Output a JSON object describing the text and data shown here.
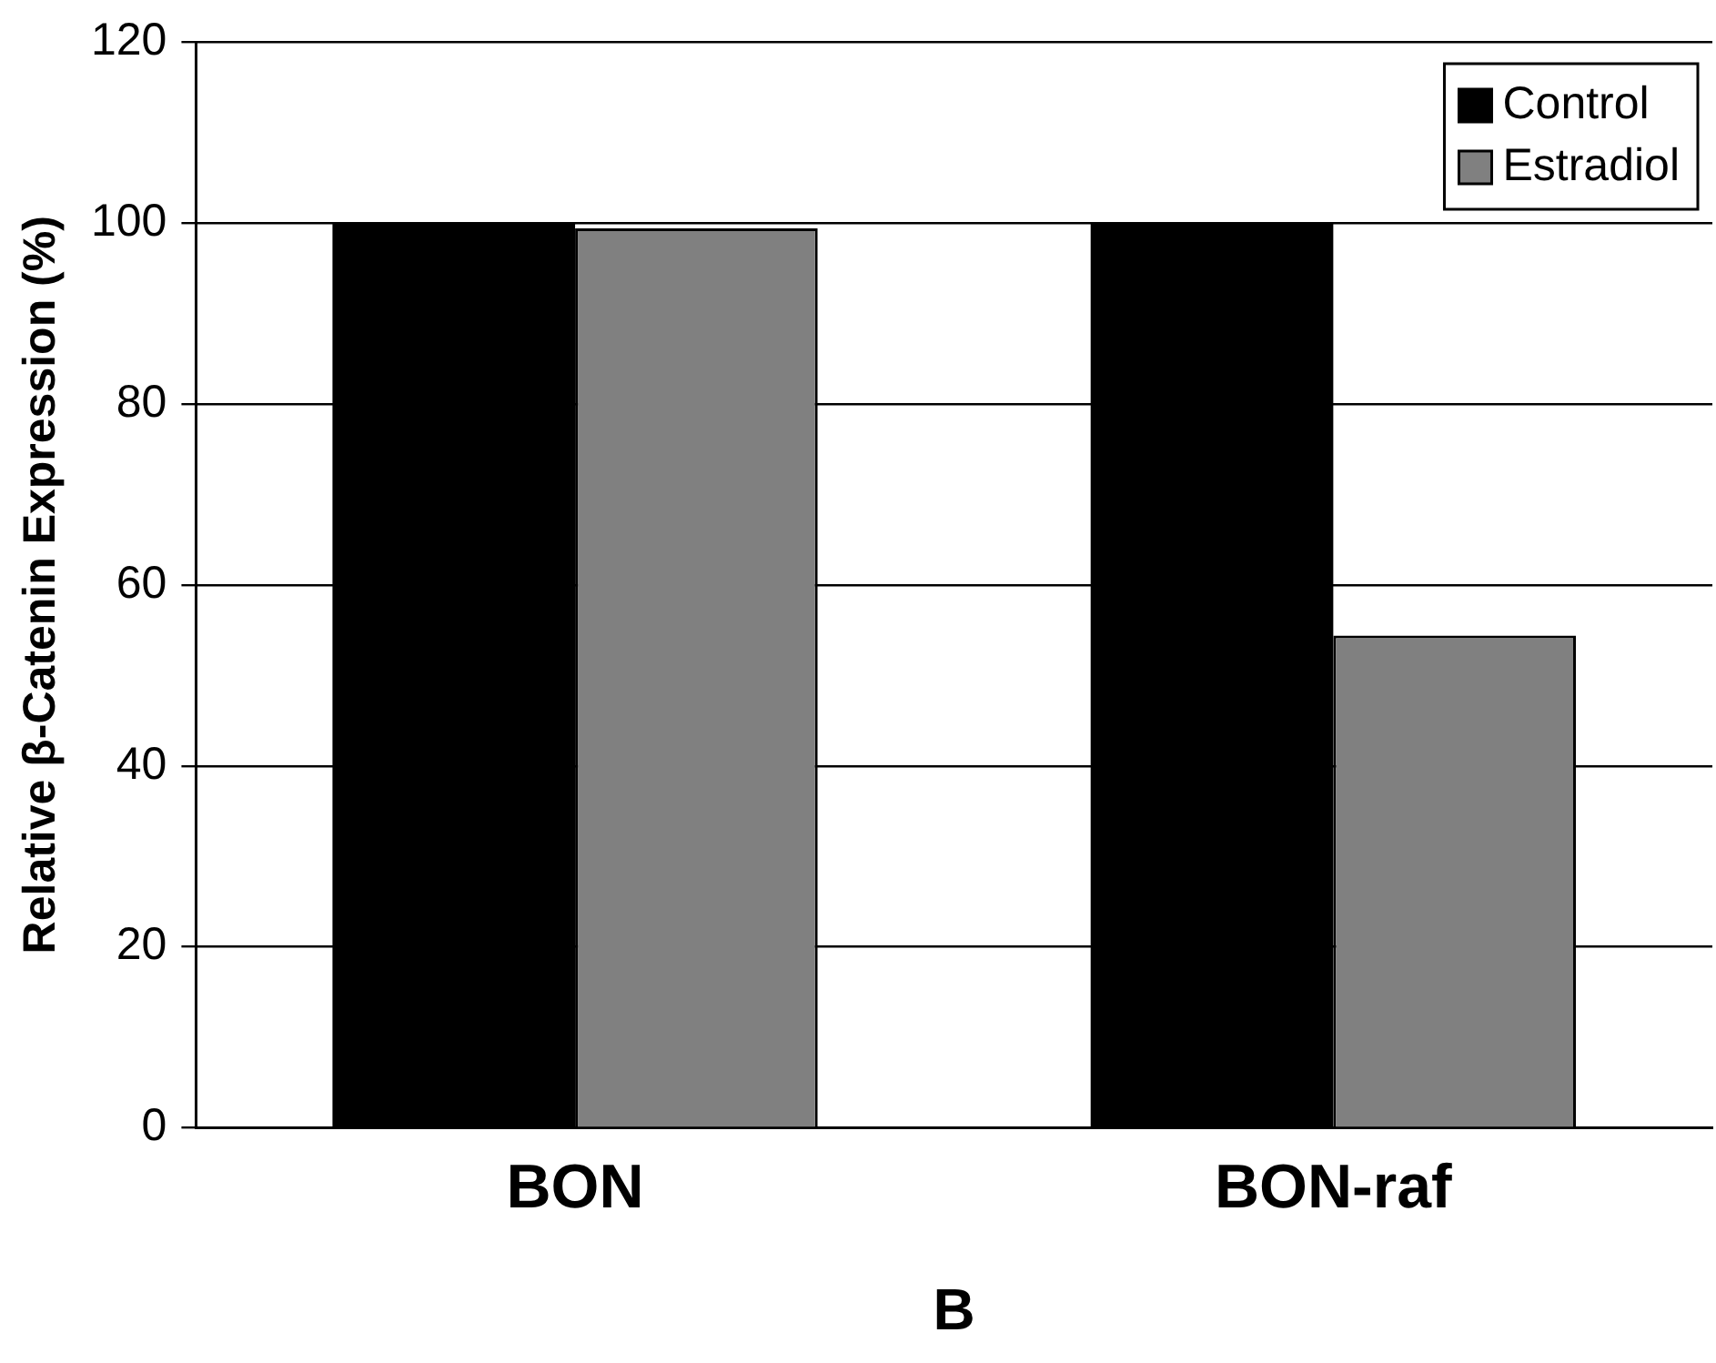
{
  "chart_data": {
    "type": "bar",
    "xlabel": "B",
    "ylabel": "Relative β-Catenin Expression (%)",
    "categories": [
      "BON",
      "BON-raf"
    ],
    "series": [
      {
        "name": "Control",
        "color": "#000000",
        "values": [
          100,
          100
        ]
      },
      {
        "name": "Estradiol",
        "color": "#808080",
        "values": [
          99.4,
          54.4
        ]
      }
    ],
    "ylim": [
      0,
      120
    ],
    "yticks": [
      0,
      20,
      40,
      60,
      80,
      100,
      120
    ],
    "grid": "y",
    "legend": "top right"
  }
}
